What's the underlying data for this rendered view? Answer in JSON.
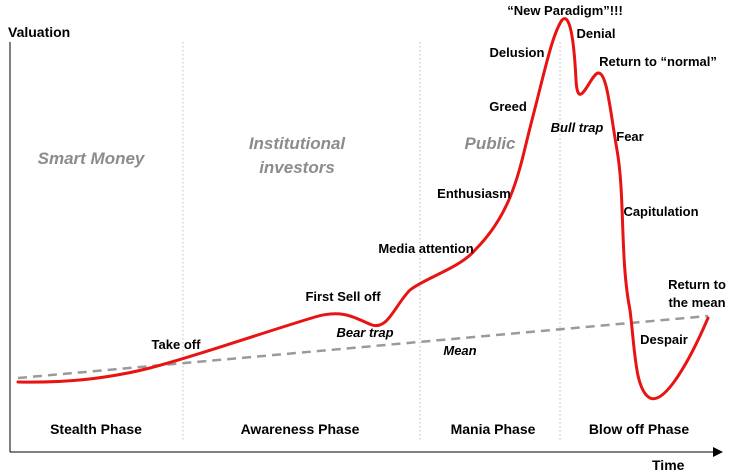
{
  "axes": {
    "y_label": "Valuation",
    "x_label": "Time"
  },
  "categories": {
    "smart_money": "Smart Money",
    "institutional_line1": "Institutional",
    "institutional_line2": "investors",
    "public": "Public"
  },
  "phases": {
    "stealth": "Stealth Phase",
    "awareness": "Awareness Phase",
    "mania": "Mania Phase",
    "blow_off": "Blow off Phase"
  },
  "annotations": {
    "take_off": "Take off",
    "first_sell_off": "First Sell off",
    "bear_trap": "Bear trap",
    "media_attention": "Media attention",
    "enthusiasm": "Enthusiasm",
    "greed": "Greed",
    "delusion": "Delusion",
    "new_paradigm": "“New Paradigm”!!!",
    "denial": "Denial",
    "return_to_normal": "Return to “normal”",
    "bull_trap": "Bull trap",
    "fear": "Fear",
    "capitulation": "Capitulation",
    "return_to_mean_line1": "Return to",
    "return_to_mean_line2": "the mean",
    "despair": "Despair",
    "mean": "Mean"
  },
  "colors": {
    "valuation_curve": "#e81414",
    "mean_line": "#9a9a9a",
    "phase_divider": "#bfbfbf",
    "axis": "#000000",
    "category_text": "#8c8c8c"
  }
}
